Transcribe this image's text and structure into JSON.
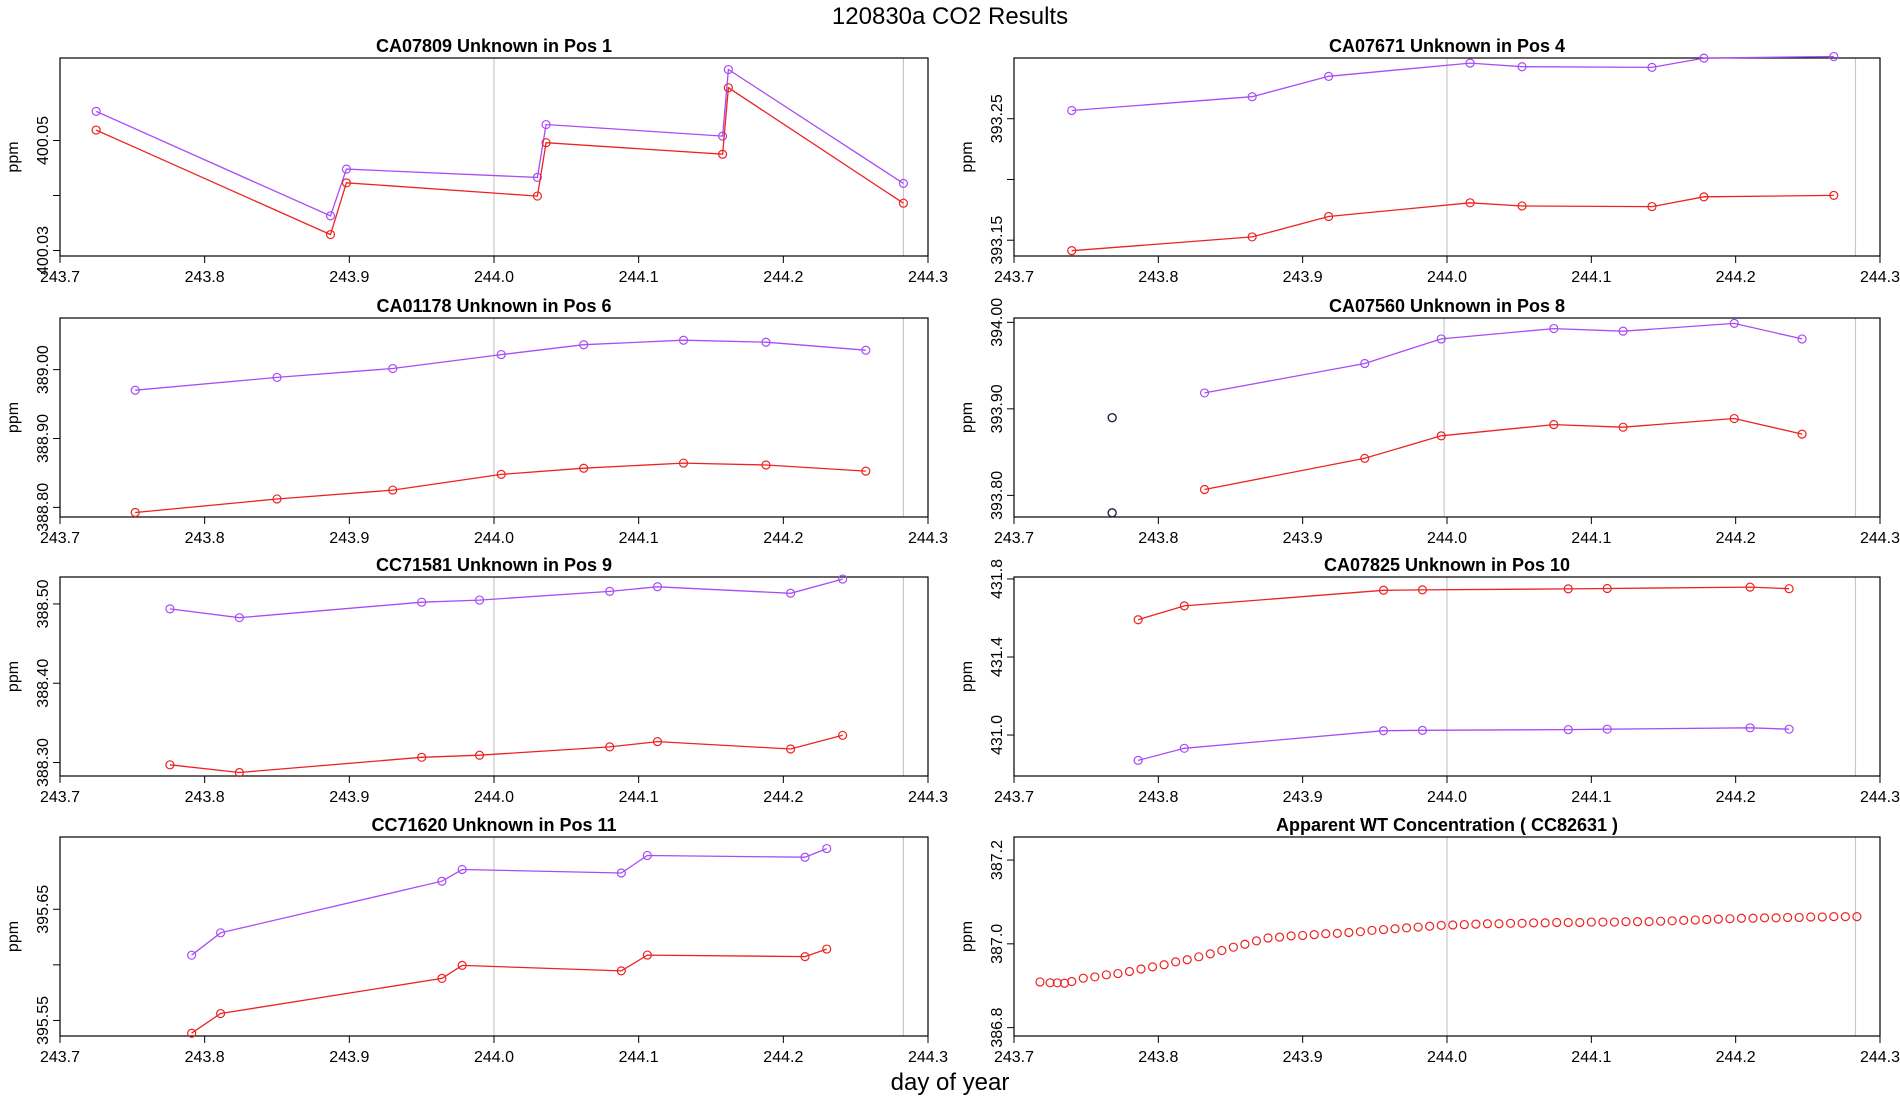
{
  "figure": {
    "title": "120830a  CO2 Results",
    "xlabel": "day of year"
  },
  "colors": {
    "series_purple": "#a84cf7",
    "series_red": "#ee2222",
    "axis": "#000000",
    "vline": "#c8c8c8",
    "outlier_edge": "#2b1a4a"
  },
  "chart_data": [
    {
      "type": "line",
      "title": "CA07809    Unknown in Pos 1",
      "ylabel": "ppm",
      "xlim": [
        243.7,
        244.3
      ],
      "ylim": [
        400.029,
        400.065
      ],
      "xticks": [
        "243.7",
        "243.8",
        "243.9",
        "244.0",
        "244.1",
        "244.2",
        "244.3"
      ],
      "yticks": [
        "400.03",
        "",
        "400.05"
      ],
      "ytick_values": [
        400.03,
        400.04,
        400.05
      ],
      "vlines": [
        244.0,
        244.283
      ],
      "series": [
        {
          "name": "purple",
          "x": [
            243.725,
            243.887,
            243.898,
            244.03,
            244.036,
            244.158,
            244.162,
            244.283
          ],
          "y": [
            400.0553,
            400.0363,
            400.0448,
            400.0433,
            400.0529,
            400.0508,
            400.0629,
            400.0422
          ]
        },
        {
          "name": "red",
          "x": [
            243.725,
            243.887,
            243.898,
            244.03,
            244.036,
            244.158,
            244.162,
            244.283
          ],
          "y": [
            400.0519,
            400.0329,
            400.0423,
            400.0399,
            400.0496,
            400.0475,
            400.0596,
            400.0386
          ]
        }
      ]
    },
    {
      "type": "line",
      "title": "CA07671    Unknown in Pos 4",
      "ylabel": "ppm",
      "xlim": [
        243.7,
        244.3
      ],
      "ylim": [
        393.137,
        393.3
      ],
      "xticks": [
        "243.7",
        "243.8",
        "243.9",
        "244.0",
        "244.1",
        "244.2",
        "244.3"
      ],
      "yticks": [
        "393.15",
        "",
        "393.25"
      ],
      "ytick_values": [
        393.15,
        393.2,
        393.25
      ],
      "vlines": [
        244.0,
        244.283
      ],
      "series": [
        {
          "name": "purple",
          "x": [
            243.74,
            243.865,
            243.918,
            244.016,
            244.052,
            244.142,
            244.178,
            244.268
          ],
          "y": [
            393.2568,
            393.2681,
            393.2849,
            393.2958,
            393.2928,
            393.2923,
            393.2999,
            393.3012
          ]
        },
        {
          "name": "red",
          "x": [
            243.74,
            243.865,
            243.918,
            244.016,
            244.052,
            244.142,
            244.178,
            244.268
          ],
          "y": [
            393.1414,
            393.1527,
            393.1695,
            393.1808,
            393.1782,
            393.1777,
            393.1857,
            393.1869
          ]
        }
      ]
    },
    {
      "type": "line",
      "title": "CA01178    Unknown in Pos 6",
      "ylabel": "ppm",
      "xlim": [
        243.7,
        244.3
      ],
      "ylim": [
        388.786,
        389.075
      ],
      "xticks": [
        "243.7",
        "243.8",
        "243.9",
        "244.0",
        "244.1",
        "244.2",
        "244.3"
      ],
      "yticks": [
        "388.80",
        "388.90",
        "389.00"
      ],
      "ytick_values": [
        388.8,
        388.9,
        389.0
      ],
      "vlines": [
        244.0,
        244.283
      ],
      "series": [
        {
          "name": "purple",
          "x": [
            243.752,
            243.85,
            243.93,
            244.005,
            244.062,
            244.131,
            244.188,
            244.257
          ],
          "y": [
            388.9701,
            388.9887,
            389.0016,
            389.0219,
            389.0362,
            389.0427,
            389.0398,
            389.0282
          ]
        },
        {
          "name": "red",
          "x": [
            243.752,
            243.85,
            243.93,
            244.005,
            244.062,
            244.131,
            244.188,
            244.257
          ],
          "y": [
            388.7925,
            388.8122,
            388.8251,
            388.8479,
            388.8568,
            388.8643,
            388.8615,
            388.8526
          ]
        }
      ]
    },
    {
      "type": "line",
      "title": "CA07560    Unknown in Pos 8",
      "ylabel": "ppm",
      "xlim": [
        243.7,
        244.3
      ],
      "ylim": [
        393.775,
        394.005
      ],
      "xticks": [
        "243.7",
        "243.8",
        "243.9",
        "244.0",
        "244.1",
        "244.2",
        "244.3"
      ],
      "yticks": [
        "393.80",
        "393.90",
        "394.00"
      ],
      "ytick_values": [
        393.8,
        393.9,
        394.0
      ],
      "vlines": [
        243.998,
        244.283
      ],
      "outliers": [
        {
          "x": 243.768,
          "y": 393.8898
        },
        {
          "x": 243.768,
          "y": 393.7798
        }
      ],
      "series": [
        {
          "name": "purple",
          "x": [
            243.832,
            243.943,
            243.996,
            244.074,
            244.122,
            244.199,
            244.246
          ],
          "y": [
            393.9184,
            393.9524,
            393.9808,
            393.9928,
            393.9898,
            393.9988,
            393.9808
          ]
        },
        {
          "name": "red",
          "x": [
            243.832,
            243.943,
            243.996,
            244.074,
            244.122,
            244.199,
            244.246
          ],
          "y": [
            393.8068,
            393.8428,
            393.8688,
            393.8818,
            393.8788,
            393.8888,
            393.8708
          ]
        }
      ]
    },
    {
      "type": "line",
      "title": "CC71581    Unknown in Pos 9",
      "ylabel": "ppm",
      "xlim": [
        243.7,
        244.3
      ],
      "ylim": [
        388.283,
        388.534
      ],
      "xticks": [
        "243.7",
        "243.8",
        "243.9",
        "244.0",
        "244.1",
        "244.2",
        "244.3"
      ],
      "yticks": [
        "388.30",
        "388.40",
        "388.50"
      ],
      "ytick_values": [
        388.3,
        388.4,
        388.5
      ],
      "vlines": [
        244.0,
        244.283
      ],
      "series": [
        {
          "name": "purple",
          "x": [
            243.776,
            243.824,
            243.95,
            243.99,
            244.08,
            244.113,
            244.205,
            244.241
          ],
          "y": [
            388.4938,
            388.4827,
            388.5022,
            388.5049,
            388.5159,
            388.5217,
            388.5135,
            388.5314
          ]
        },
        {
          "name": "red",
          "x": [
            243.776,
            243.824,
            243.95,
            243.99,
            244.08,
            244.113,
            244.205,
            244.241
          ],
          "y": [
            388.2971,
            388.2874,
            388.3066,
            388.3092,
            388.3197,
            388.3264,
            388.3171,
            388.3343
          ]
        }
      ]
    },
    {
      "type": "line",
      "title": "CA07825    Unknown in Pos 10",
      "ylabel": "ppm",
      "xlim": [
        243.7,
        244.3
      ],
      "ylim": [
        430.79,
        431.81
      ],
      "xticks": [
        "243.7",
        "243.8",
        "243.9",
        "244.0",
        "244.1",
        "244.2",
        "244.3"
      ],
      "yticks": [
        "431.0",
        "431.4",
        "431.8"
      ],
      "ytick_values": [
        431.0,
        431.4,
        431.8
      ],
      "vlines": [
        244.0,
        244.283
      ],
      "series": [
        {
          "name": "red",
          "x": [
            243.786,
            243.818,
            243.956,
            243.983,
            244.084,
            244.111,
            244.21,
            244.237
          ],
          "y": [
            431.591,
            431.662,
            431.742,
            431.744,
            431.749,
            431.751,
            431.758,
            431.75
          ]
        },
        {
          "name": "purple",
          "x": [
            243.786,
            243.818,
            243.956,
            243.983,
            244.084,
            244.111,
            244.21,
            244.237
          ],
          "y": [
            430.87,
            430.932,
            431.022,
            431.024,
            431.028,
            431.03,
            431.037,
            431.03
          ]
        }
      ]
    },
    {
      "type": "line",
      "title": "CC71620    Unknown in Pos 11",
      "ylabel": "ppm",
      "xlim": [
        243.7,
        244.3
      ],
      "ylim": [
        395.536,
        395.715
      ],
      "xticks": [
        "243.7",
        "243.8",
        "243.9",
        "244.0",
        "244.1",
        "244.2",
        "244.3"
      ],
      "yticks": [
        "395.55",
        "",
        "395.65"
      ],
      "ytick_values": [
        395.55,
        395.6,
        395.65
      ],
      "vlines": [
        244.0,
        244.283
      ],
      "series": [
        {
          "name": "purple",
          "x": [
            243.791,
            243.811,
            243.964,
            243.978,
            244.088,
            244.106,
            244.215,
            244.23
          ],
          "y": [
            395.6087,
            395.6288,
            395.6752,
            395.6858,
            395.6826,
            395.6984,
            395.6968,
            395.7046
          ]
        },
        {
          "name": "red",
          "x": [
            243.791,
            243.811,
            243.964,
            243.978,
            244.088,
            244.106,
            244.215,
            244.23
          ],
          "y": [
            395.5385,
            395.5562,
            395.5878,
            395.5995,
            395.5946,
            395.6088,
            395.6074,
            395.6142
          ]
        }
      ]
    },
    {
      "type": "scatter",
      "title": "Apparent WT Concentration ( CC82631 )",
      "ylabel": "ppm",
      "xlim": [
        243.7,
        244.3
      ],
      "ylim": [
        386.78,
        387.255
      ],
      "xticks": [
        "243.7",
        "243.8",
        "243.9",
        "244.0",
        "244.1",
        "244.2",
        "244.3"
      ],
      "yticks": [
        "386.8",
        "387.0",
        "387.2"
      ],
      "ytick_values": [
        386.8,
        387.0,
        387.2
      ],
      "vlines": [
        244.0,
        244.283
      ],
      "series": [
        {
          "name": "red",
          "x": [
            243.718,
            243.725,
            243.73,
            243.735,
            243.74,
            243.748,
            243.756,
            243.764,
            243.772,
            243.78,
            243.788,
            243.796,
            243.804,
            243.812,
            243.82,
            243.828,
            243.836,
            243.844,
            243.852,
            243.86,
            243.868,
            243.876,
            243.884,
            243.892,
            243.9,
            243.908,
            243.916,
            243.924,
            243.932,
            243.94,
            243.948,
            243.956,
            243.964,
            243.972,
            243.98,
            243.988,
            243.996,
            244.004,
            244.012,
            244.02,
            244.028,
            244.036,
            244.044,
            244.052,
            244.06,
            244.068,
            244.076,
            244.084,
            244.092,
            244.1,
            244.108,
            244.116,
            244.124,
            244.132,
            244.14,
            244.148,
            244.156,
            244.164,
            244.172,
            244.18,
            244.188,
            244.196,
            244.204,
            244.212,
            244.22,
            244.228,
            244.236,
            244.244,
            244.252,
            244.26,
            244.268,
            244.276,
            244.284
          ],
          "y": [
            386.909,
            386.907,
            386.907,
            386.906,
            386.91,
            386.918,
            386.921,
            386.926,
            386.929,
            386.934,
            386.94,
            386.945,
            386.95,
            386.957,
            386.962,
            386.969,
            386.976,
            386.984,
            386.992,
            386.999,
            387.007,
            387.014,
            387.016,
            387.019,
            387.02,
            387.022,
            387.024,
            387.025,
            387.027,
            387.029,
            387.032,
            387.034,
            387.036,
            387.038,
            387.04,
            387.042,
            387.044,
            387.045,
            387.046,
            387.047,
            387.048,
            387.048,
            387.049,
            387.049,
            387.05,
            387.05,
            387.051,
            387.051,
            387.051,
            387.052,
            387.052,
            387.052,
            387.053,
            387.053,
            387.053,
            387.054,
            387.055,
            387.056,
            387.057,
            387.058,
            387.059,
            387.06,
            387.061,
            387.061,
            387.062,
            387.062,
            387.063,
            387.063,
            387.064,
            387.064,
            387.065,
            387.065,
            387.065
          ]
        }
      ]
    }
  ]
}
